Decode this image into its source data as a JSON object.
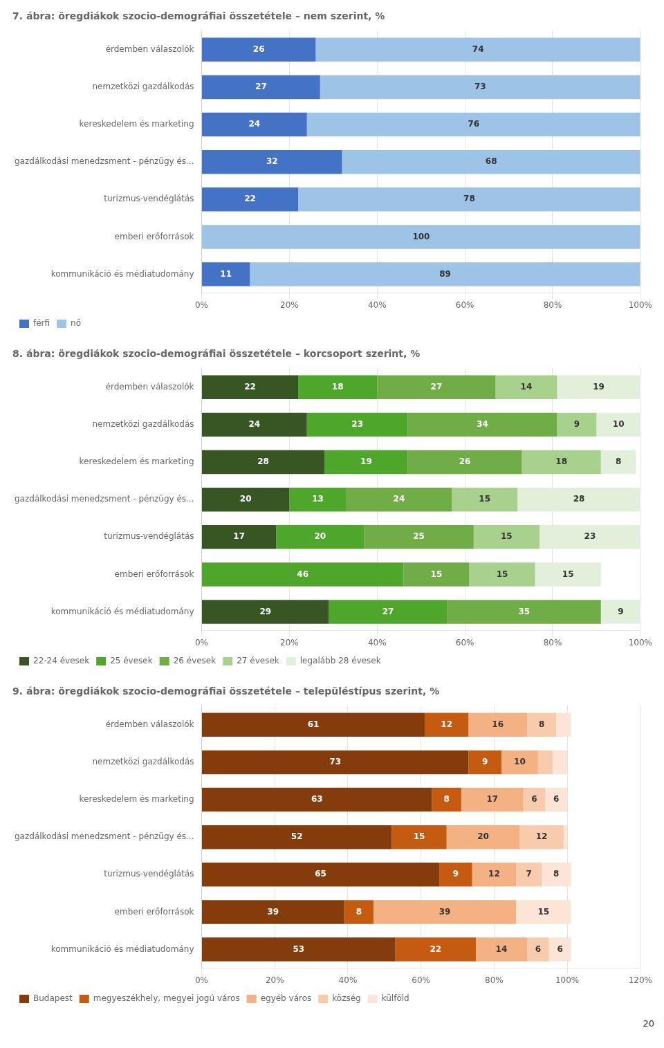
{
  "chart_data": [
    {
      "type": "bar",
      "orientation": "horizontal",
      "stacked": true,
      "grid": true,
      "legend": "bottom",
      "data_labels": true,
      "title": "7. ábra: öregdiákok szocio-demográfiai összetétele – nem szerint, %",
      "categories": [
        "érdemben válaszolók",
        "nemzetközi gazdálkodás",
        "kereskedelem és marketing",
        "gazdálkodási menedzsment - pénzügy és...",
        "turizmus-vendéglátás",
        "emberi erőforrások",
        "kommunikáció és médiatudomány"
      ],
      "series": [
        {
          "name": "férfi",
          "color": "#4472C4",
          "values": [
            26,
            27,
            24,
            32,
            22,
            0,
            11
          ],
          "value_labels": [
            "26",
            "27",
            "24",
            "32",
            "22",
            null,
            "11"
          ]
        },
        {
          "name": "nő",
          "color": "#9DC3E6",
          "values": [
            74,
            73,
            76,
            68,
            78,
            100,
            89
          ],
          "value_labels": [
            "74",
            "73",
            "76",
            "68",
            "78",
            "100",
            "89"
          ]
        }
      ],
      "xlim": [
        0,
        100
      ],
      "xticks": [
        {
          "value": 0,
          "label": "0%"
        },
        {
          "value": 20,
          "label": "20%"
        },
        {
          "value": 40,
          "label": "40%"
        },
        {
          "value": 60,
          "label": "60%"
        },
        {
          "value": 80,
          "label": "80%"
        },
        {
          "value": 100,
          "label": "100%"
        }
      ]
    },
    {
      "type": "bar",
      "orientation": "horizontal",
      "stacked": true,
      "grid": true,
      "legend": "bottom",
      "data_labels": true,
      "title": "8. ábra: öregdiákok szocio-demográfiai összetétele – korcsoport szerint, %",
      "categories": [
        "érdemben válaszolók",
        "nemzetközi gazdálkodás",
        "kereskedelem és marketing",
        "gazdálkodási menedzsment - pénzügy és...",
        "turizmus-vendéglátás",
        "emberi erőforrások",
        "kommunikáció és médiatudomány"
      ],
      "series": [
        {
          "name": "22-24 évesek",
          "color": "#375623",
          "values": [
            22,
            24,
            28,
            20,
            17,
            0,
            29
          ],
          "value_labels": [
            "22",
            "24",
            "28",
            "20",
            "17",
            null,
            "29"
          ]
        },
        {
          "name": "25 évesek",
          "color": "#4EA72A",
          "values": [
            18,
            23,
            19,
            13,
            20,
            46,
            27
          ],
          "value_labels": [
            "18",
            "23",
            "19",
            "13",
            "20",
            "46",
            "27"
          ]
        },
        {
          "name": "26 évesek",
          "color": "#70AD47",
          "values": [
            27,
            34,
            26,
            24,
            25,
            15,
            35
          ],
          "value_labels": [
            "27",
            "34",
            "26",
            "24",
            "25",
            "15",
            "35"
          ]
        },
        {
          "name": "27 évesek",
          "color": "#A9D18E",
          "values": [
            14,
            9,
            18,
            15,
            15,
            15,
            0
          ],
          "value_labels": [
            "14",
            "9",
            "18",
            "15",
            "15",
            "15",
            null
          ]
        },
        {
          "name": "legalább 28 évesek",
          "color": "#E2EFDA",
          "values": [
            19,
            10,
            8,
            28,
            23,
            15,
            9
          ],
          "value_labels": [
            "19",
            "10",
            "8",
            "28",
            "23",
            "15",
            "9"
          ]
        }
      ],
      "xlim": [
        0,
        100
      ],
      "xticks": [
        {
          "value": 0,
          "label": "0%"
        },
        {
          "value": 20,
          "label": "20%"
        },
        {
          "value": 40,
          "label": "40%"
        },
        {
          "value": 60,
          "label": "60%"
        },
        {
          "value": 80,
          "label": "80%"
        },
        {
          "value": 100,
          "label": "100%"
        }
      ]
    },
    {
      "type": "bar",
      "orientation": "horizontal",
      "stacked": true,
      "grid": true,
      "legend": "bottom",
      "data_labels": true,
      "title": "9. ábra: öregdiákok szocio-demográfiai összetétele – településtípus szerint, %",
      "categories": [
        "érdemben válaszolók",
        "nemzetközi gazdálkodás",
        "kereskedelem és marketing",
        "gazdálkodási menedzsment - pénzügy és...",
        "turizmus-vendéglátás",
        "emberi erőforrások",
        "kommunikáció és médiatudomány"
      ],
      "series": [
        {
          "name": "Budapest",
          "color": "#843C0C",
          "values": [
            61,
            73,
            63,
            52,
            65,
            39,
            53
          ],
          "value_labels": [
            "61",
            "73",
            "63",
            "52",
            "65",
            "39",
            "53"
          ]
        },
        {
          "name": "megyeszékhely, megyei jogú város",
          "color": "#C55A11",
          "values": [
            12,
            9,
            8,
            15,
            9,
            8,
            22
          ],
          "value_labels": [
            "12",
            "9",
            "8",
            "15",
            "9",
            "8",
            "22"
          ]
        },
        {
          "name": "egyéb város",
          "color": "#F4B183",
          "values": [
            16,
            10,
            17,
            20,
            12,
            39,
            14
          ],
          "value_labels": [
            "16",
            "10",
            "17",
            "20",
            "12",
            "39",
            "14"
          ]
        },
        {
          "name": "község",
          "color": "#F8CBAD",
          "values": [
            8,
            4,
            6,
            12,
            7,
            0,
            6
          ],
          "value_labels": [
            "8",
            null,
            "6",
            "12",
            "7",
            null,
            "6"
          ]
        },
        {
          "name": "külföld",
          "color": "#FCE4D6",
          "values": [
            4,
            4,
            6,
            1,
            8,
            15,
            6
          ],
          "value_labels": [
            null,
            null,
            "6",
            null,
            "8",
            "15",
            "6"
          ]
        }
      ],
      "xlim": [
        0,
        120
      ],
      "xticks": [
        {
          "value": 0,
          "label": "0%"
        },
        {
          "value": 20,
          "label": "20%"
        },
        {
          "value": 40,
          "label": "40%"
        },
        {
          "value": 60,
          "label": "60%"
        },
        {
          "value": 80,
          "label": "80%"
        },
        {
          "value": 100,
          "label": "100%"
        },
        {
          "value": 120,
          "label": "120%"
        }
      ],
      "annotations": [
        "20"
      ]
    }
  ]
}
